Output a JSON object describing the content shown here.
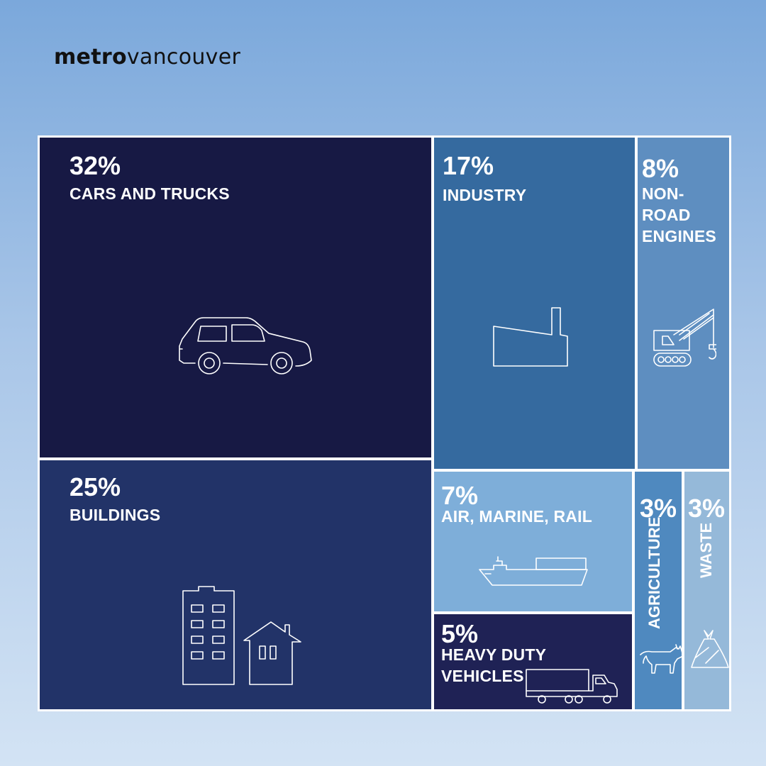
{
  "brand": {
    "bold": "metro",
    "regular": "vancouver"
  },
  "chart_data": {
    "type": "treemap",
    "unit": "%",
    "items": [
      {
        "label": "CARS AND TRUCKS",
        "value": 32,
        "pct_text": "32%",
        "color": "#171944",
        "icon": "car-icon"
      },
      {
        "label": "BUILDINGS",
        "value": 25,
        "pct_text": "25%",
        "color": "#223368",
        "icon": "buildings-icon"
      },
      {
        "label": "INDUSTRY",
        "value": 17,
        "pct_text": "17%",
        "color": "#356a9f",
        "icon": "factory-icon"
      },
      {
        "label": "NON-ROAD\nENGINES",
        "value": 8,
        "pct_text": "8%",
        "color": "#5e8ec0",
        "icon": "crane-icon"
      },
      {
        "label": "AIR, MARINE, RAIL",
        "value": 7,
        "pct_text": "7%",
        "color": "#7eaed9",
        "icon": "ship-icon"
      },
      {
        "label": "HEAVY DUTY\nVEHICLES",
        "value": 5,
        "pct_text": "5%",
        "color": "#1f2255",
        "icon": "truck-icon"
      },
      {
        "label": "AGRICULTURE",
        "value": 3,
        "pct_text": "3%",
        "color": "#4f89bf",
        "icon": "cow-icon"
      },
      {
        "label": "WASTE",
        "value": 3,
        "pct_text": "3%",
        "color": "#95b9d9",
        "icon": "trash-bag-icon"
      }
    ]
  }
}
